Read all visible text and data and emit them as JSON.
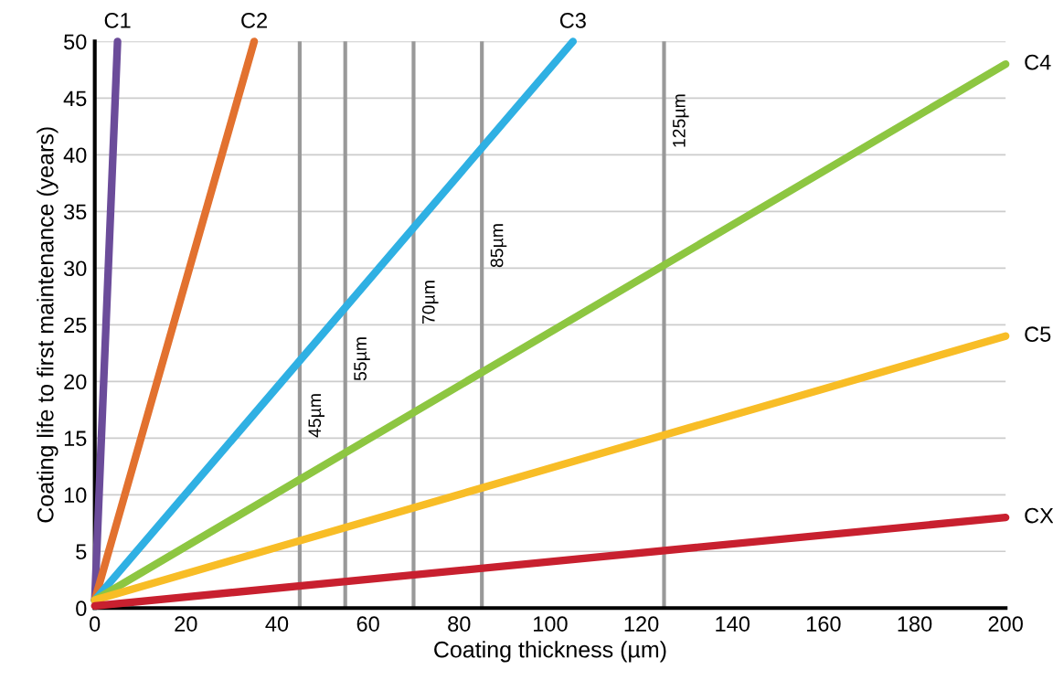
{
  "chart_data": {
    "type": "line",
    "xlabel": "Coating thickness (µm)",
    "ylabel": "Coating life to first maintenance (years)",
    "xlim": [
      0,
      200
    ],
    "ylim": [
      0,
      50
    ],
    "xticks": [
      0,
      20,
      40,
      60,
      80,
      100,
      120,
      140,
      160,
      180,
      200
    ],
    "yticks": [
      0,
      5,
      10,
      15,
      20,
      25,
      30,
      35,
      40,
      45,
      50
    ],
    "grid": "y",
    "marker": "none",
    "line_style": "solid",
    "series": [
      {
        "name": "C1",
        "color": "#6b4c9a",
        "x": [
          0,
          5
        ],
        "values": [
          0.7,
          50
        ]
      },
      {
        "name": "C2",
        "color": "#e2712f",
        "x": [
          0,
          35
        ],
        "values": [
          0.7,
          50
        ]
      },
      {
        "name": "C3",
        "color": "#2fb0e3",
        "x": [
          0,
          105
        ],
        "values": [
          0.7,
          50
        ]
      },
      {
        "name": "C4",
        "color": "#8dc641",
        "x": [
          0,
          200
        ],
        "values": [
          0.7,
          48
        ]
      },
      {
        "name": "C5",
        "color": "#f8bd26",
        "x": [
          0,
          200
        ],
        "values": [
          0.7,
          24
        ]
      },
      {
        "name": "CX",
        "color": "#c8202f",
        "x": [
          0,
          200
        ],
        "values": [
          0.2,
          8
        ]
      }
    ],
    "ref_lines": [
      {
        "axis": "x",
        "value": 45,
        "label": "45µm",
        "color": "#999999"
      },
      {
        "axis": "x",
        "value": 55,
        "label": "55µm",
        "color": "#999999"
      },
      {
        "axis": "x",
        "value": 70,
        "label": "70µm",
        "color": "#999999"
      },
      {
        "axis": "x",
        "value": 85,
        "label": "85µm",
        "color": "#999999"
      },
      {
        "axis": "x",
        "value": 125,
        "label": "125µm",
        "color": "#999999"
      }
    ]
  }
}
